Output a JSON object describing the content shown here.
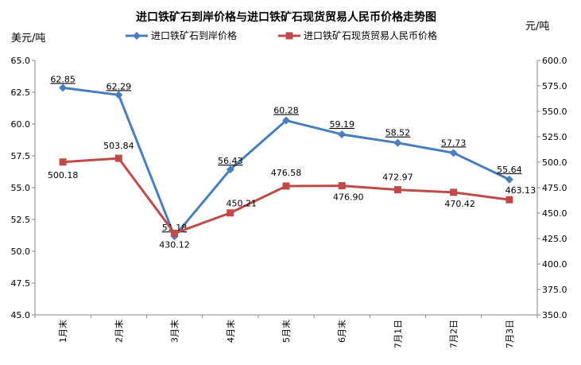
{
  "chart_data": {
    "type": "line",
    "title": "进口铁矿石到岸价格与进口铁矿石现货贸易人民币价格走势图",
    "y_left_unit": "美元/吨",
    "y_right_unit": "元/吨",
    "categories": [
      "1月末",
      "2月末",
      "3月末",
      "4月末",
      "5月末",
      "6月末",
      "7月1日",
      "7月2日",
      "7月3日"
    ],
    "ylim_left": [
      45.0,
      65.0
    ],
    "ylim_right": [
      350.0,
      600.0
    ],
    "yticks_left": [
      "45.0",
      "47.5",
      "50.0",
      "52.5",
      "55.0",
      "57.5",
      "60.0",
      "62.5",
      "65.0"
    ],
    "yticks_right": [
      "350.0",
      "375.0",
      "400.0",
      "425.0",
      "450.0",
      "475.0",
      "500.0",
      "525.0",
      "550.0",
      "575.0",
      "600.0"
    ],
    "grid": false,
    "legend_position": "top",
    "series": [
      {
        "name": "进口铁矿石到岸价格",
        "axis": "left",
        "color": "#4a7ebb",
        "marker": "diamond",
        "values": [
          62.85,
          62.29,
          51.18,
          56.43,
          60.28,
          59.19,
          58.52,
          57.73,
          55.64
        ],
        "labels": [
          "62.85",
          "62.29",
          "51.18",
          "56.43",
          "60.28",
          "59.19",
          "58.52",
          "57.73",
          "55.64"
        ]
      },
      {
        "name": "进口铁矿石现货贸易人民币价格",
        "axis": "right",
        "color": "#be4b48",
        "marker": "square",
        "values": [
          500.18,
          503.84,
          430.12,
          450.21,
          476.58,
          476.9,
          472.97,
          470.42,
          463.13
        ],
        "labels": [
          "500.18",
          "503.84",
          "430.12",
          "450.21",
          "476.58",
          "476.90",
          "472.97",
          "470.42",
          "463.13"
        ]
      }
    ]
  }
}
